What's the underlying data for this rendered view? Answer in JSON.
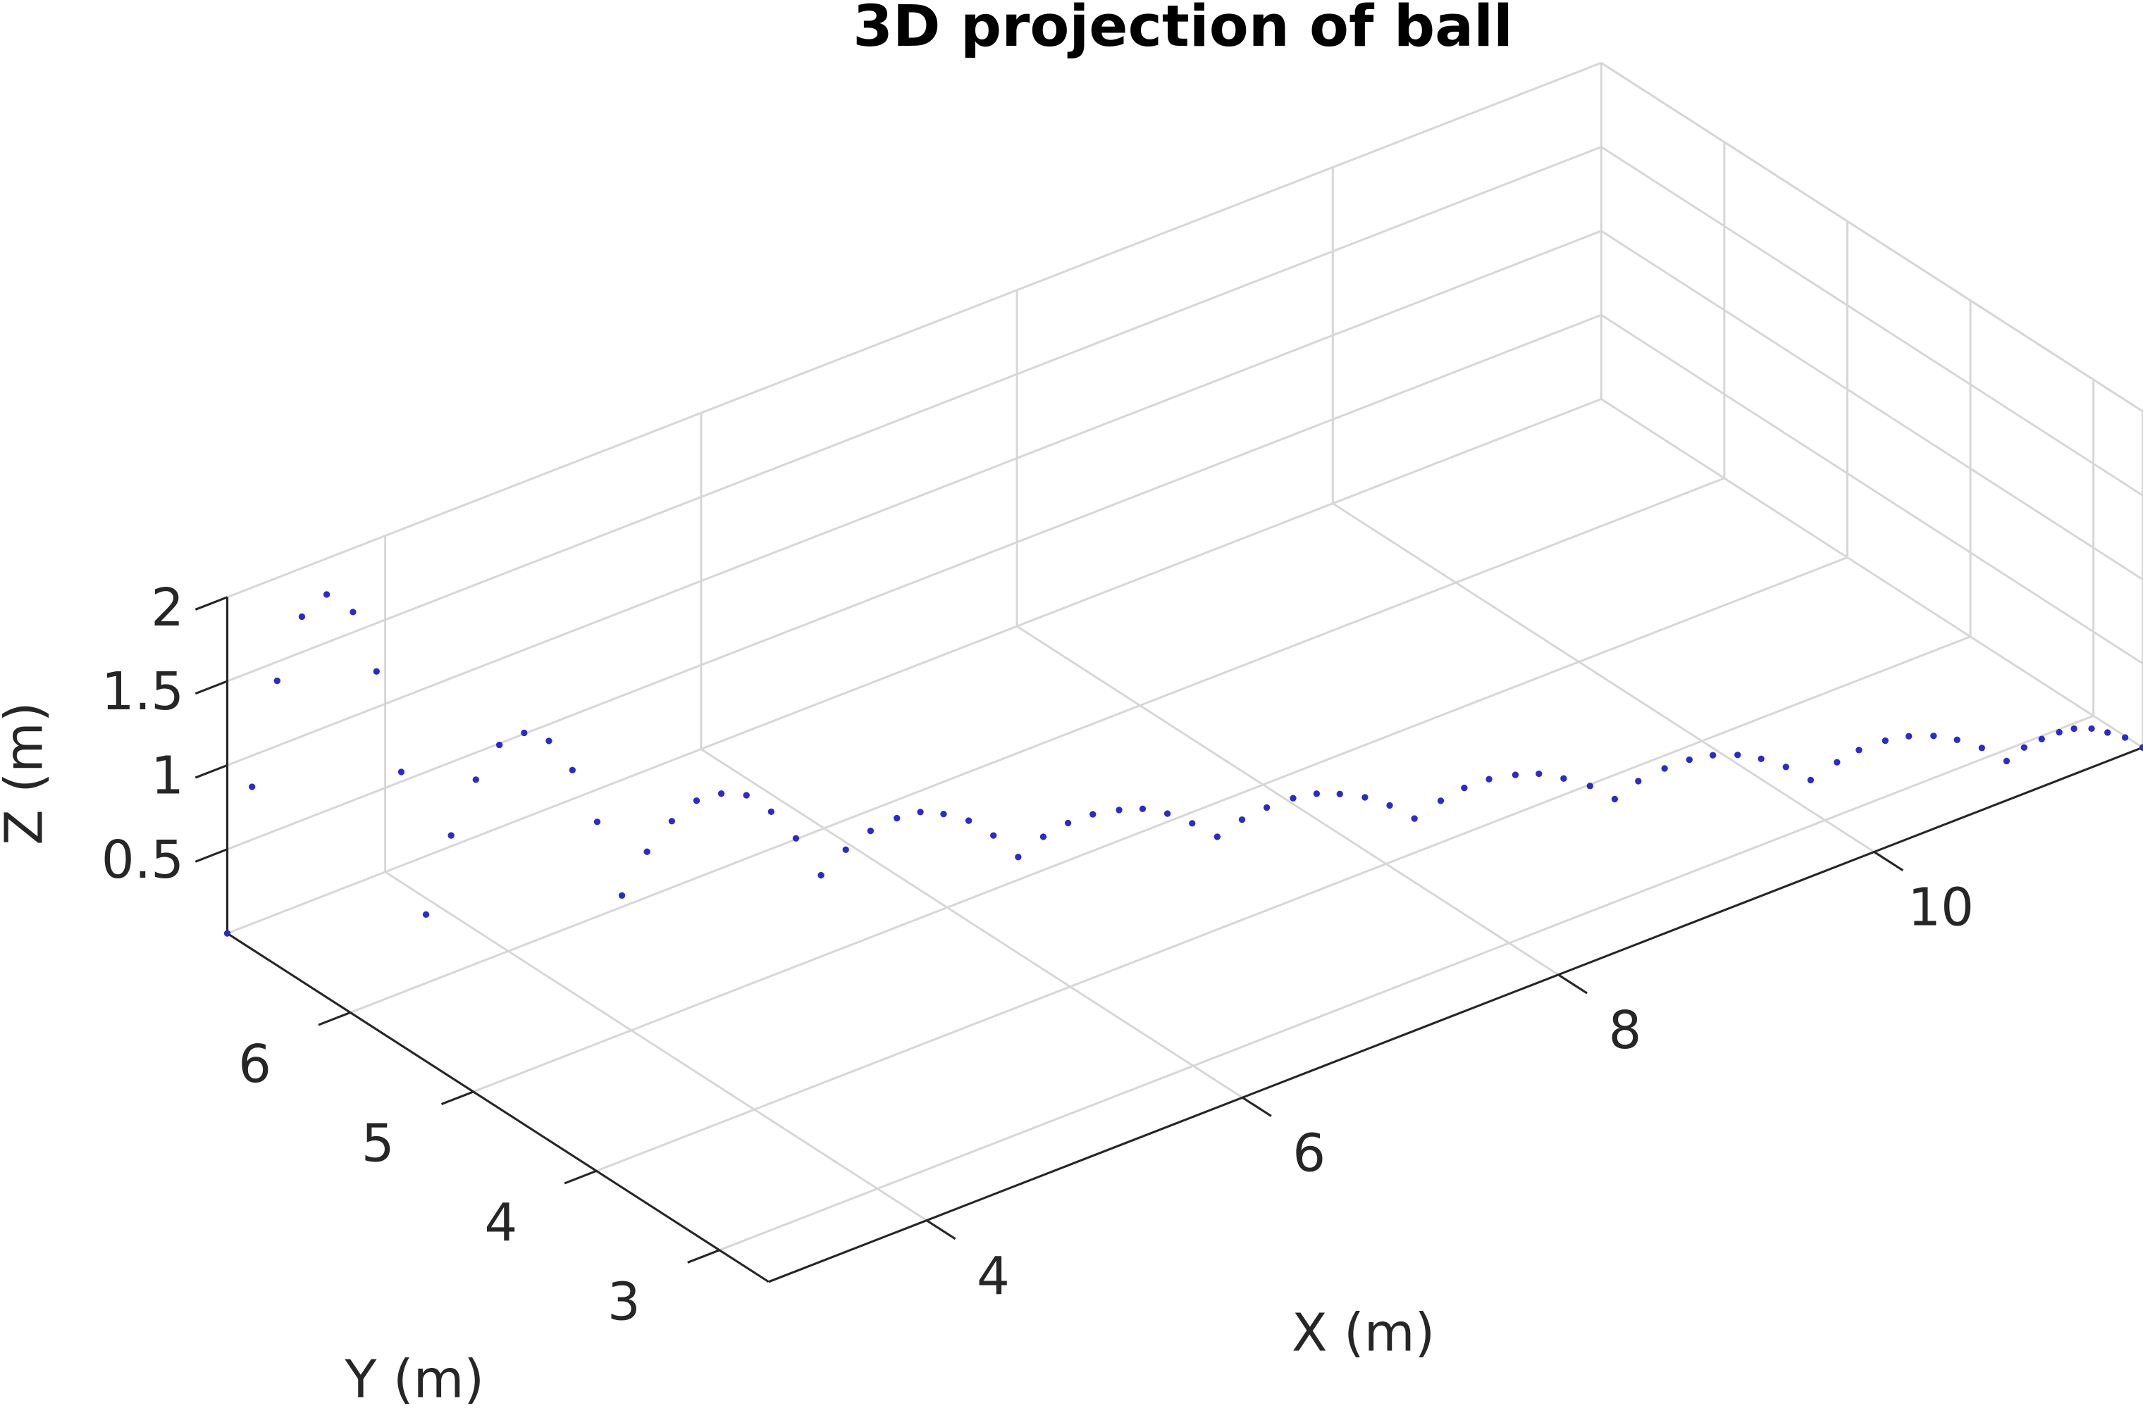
{
  "chart_data": {
    "type": "scatter3d",
    "title": "3D projection of ball",
    "xlabel": "X (m)",
    "ylabel": "Y (m)",
    "zlabel": "Z (m)",
    "xlim": [
      3,
      11.7
    ],
    "ylim": [
      2.6,
      7
    ],
    "zlim": [
      0,
      2
    ],
    "xticks": [
      4,
      6,
      8,
      10
    ],
    "yticks": [
      3,
      4,
      5,
      6
    ],
    "zticks": [
      0.5,
      1,
      1.5,
      2
    ],
    "grid": true,
    "color": "#2b2bc9",
    "x": [
      3.0,
      3.11,
      3.23,
      3.34,
      3.45,
      3.57,
      3.68,
      3.79,
      3.9,
      4.02,
      4.13,
      4.24,
      4.35,
      4.46,
      4.57,
      4.68,
      4.79,
      4.91,
      5.02,
      5.13,
      5.24,
      5.36,
      5.47,
      5.58,
      5.7,
      5.81,
      5.92,
      6.04,
      6.15,
      6.25,
      6.37,
      6.48,
      6.59,
      6.71,
      6.82,
      6.93,
      7.05,
      7.16,
      7.27,
      7.38,
      7.5,
      7.61,
      7.72,
      7.84,
      7.95,
      8.05,
      8.17,
      8.28,
      8.39,
      8.51,
      8.62,
      8.73,
      8.85,
      8.96,
      9.07,
      9.19,
      9.3,
      9.41,
      9.53,
      9.64,
      9.75,
      9.86,
      9.97,
      10.08,
      10.19,
      10.31,
      10.41,
      10.53,
      10.64,
      10.75,
      10.86,
      10.97,
      11.08,
      11.16,
      11.24,
      11.32,
      11.39,
      11.47,
      11.54,
      11.62,
      11.7
    ],
    "y": [
      7.0,
      6.94,
      6.89,
      6.83,
      6.77,
      6.71,
      6.66,
      6.6,
      6.54,
      6.49,
      6.43,
      6.38,
      6.32,
      6.26,
      6.21,
      6.15,
      6.09,
      6.04,
      5.98,
      5.92,
      5.86,
      5.81,
      5.75,
      5.69,
      5.64,
      5.58,
      5.52,
      5.46,
      5.41,
      5.35,
      5.3,
      5.24,
      5.18,
      5.13,
      5.07,
      5.01,
      4.95,
      4.9,
      4.84,
      4.78,
      4.73,
      4.67,
      4.61,
      4.55,
      4.5,
      4.44,
      4.39,
      4.33,
      4.27,
      4.21,
      4.16,
      4.1,
      4.04,
      3.99,
      3.93,
      3.87,
      3.81,
      3.76,
      3.7,
      3.64,
      3.59,
      3.53,
      3.48,
      3.42,
      3.36,
      3.3,
      3.25,
      3.19,
      3.14,
      3.08,
      3.03,
      2.97,
      2.91,
      2.87,
      2.83,
      2.79,
      2.76,
      2.72,
      2.68,
      2.64,
      2.6
    ],
    "z": [
      0,
      0.86,
      1.47,
      1.84,
      1.96,
      1.84,
      1.47,
      0.86,
      0,
      0.45,
      0.77,
      0.96,
      1.02,
      0.96,
      0.77,
      0.45,
      0,
      0.24,
      0.41,
      0.52,
      0.55,
      0.52,
      0.41,
      0.24,
      0,
      0.14,
      0.24,
      0.3,
      0.32,
      0.3,
      0.24,
      0.14,
      0,
      0.1,
      0.17,
      0.21,
      0.22,
      0.21,
      0.17,
      0.1,
      0,
      0.09,
      0.15,
      0.19,
      0.2,
      0.19,
      0.15,
      0.09,
      0,
      0.09,
      0.15,
      0.19,
      0.2,
      0.19,
      0.15,
      0.09,
      0,
      0.09,
      0.15,
      0.19,
      0.2,
      0.19,
      0.15,
      0.09,
      0,
      0.09,
      0.15,
      0.19,
      0.2,
      0.19,
      0.15,
      0.09,
      0,
      0.07,
      0.11,
      0.14,
      0.15,
      0.14,
      0.11,
      0.07,
      0
    ]
  }
}
